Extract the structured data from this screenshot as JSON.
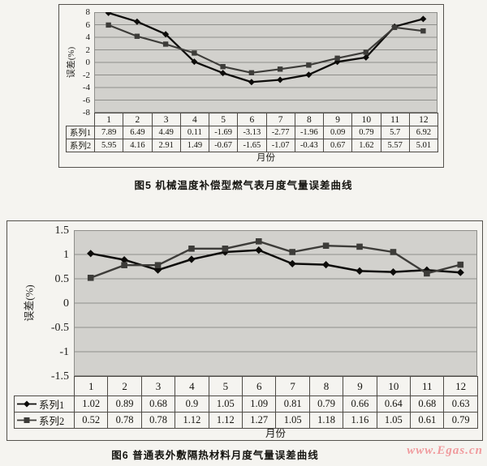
{
  "page": {
    "watermark": {
      "text": "www.Egas.cn",
      "color": "#f09a9d"
    },
    "background": "#f5f4f0"
  },
  "chart_data": [
    {
      "type": "line",
      "title": "图5  机械温度补偿型燃气表月度气量误差曲线",
      "xlabel": "月份",
      "ylabel": "误差(%)",
      "categories": [
        "1",
        "2",
        "3",
        "4",
        "5",
        "6",
        "7",
        "8",
        "9",
        "10",
        "11",
        "12"
      ],
      "series": [
        {
          "name": "系列1",
          "marker": "diamond",
          "color": "#0d0c0a",
          "values": [
            7.89,
            6.49,
            4.49,
            0.11,
            -1.69,
            -3.13,
            -2.77,
            -1.96,
            0.09,
            0.79,
            5.7,
            6.92
          ]
        },
        {
          "name": "系列2",
          "marker": "square",
          "color": "#3d3c39",
          "values": [
            5.95,
            4.16,
            2.91,
            1.49,
            -0.67,
            -1.65,
            -1.07,
            -0.43,
            0.67,
            1.62,
            5.57,
            5.01
          ]
        }
      ],
      "ylim": [
        -8,
        8
      ],
      "yticks": [
        8,
        6,
        4,
        2,
        0,
        -2,
        -4,
        -6,
        -8
      ],
      "grid": true,
      "legend_in_table_rows": false,
      "plot_bg": "#d2d1cd",
      "grid_color": "#8e8e8a"
    },
    {
      "type": "line",
      "title": "图6  普通表外敷隔热材料月度气量误差曲线",
      "xlabel": "月份",
      "ylabel": "误差(%)",
      "categories": [
        "1",
        "2",
        "3",
        "4",
        "5",
        "6",
        "7",
        "8",
        "9",
        "10",
        "11",
        "12"
      ],
      "series": [
        {
          "name": "系列1",
          "marker": "diamond",
          "color": "#0d0c0a",
          "values": [
            1.02,
            0.89,
            0.68,
            0.9,
            1.05,
            1.09,
            0.81,
            0.79,
            0.66,
            0.64,
            0.68,
            0.63
          ]
        },
        {
          "name": "系列2",
          "marker": "square",
          "color": "#3d3c39",
          "values": [
            0.52,
            0.78,
            0.78,
            1.12,
            1.12,
            1.27,
            1.05,
            1.18,
            1.16,
            1.05,
            0.61,
            0.79
          ]
        }
      ],
      "ylim": [
        -1.5,
        1.5
      ],
      "yticks": [
        1.5,
        1,
        0.5,
        0,
        -0.5,
        -1,
        -1.5
      ],
      "grid": true,
      "legend_in_table_rows": true,
      "plot_bg": "#d2d1cd",
      "grid_color": "#8e8e8a"
    }
  ]
}
